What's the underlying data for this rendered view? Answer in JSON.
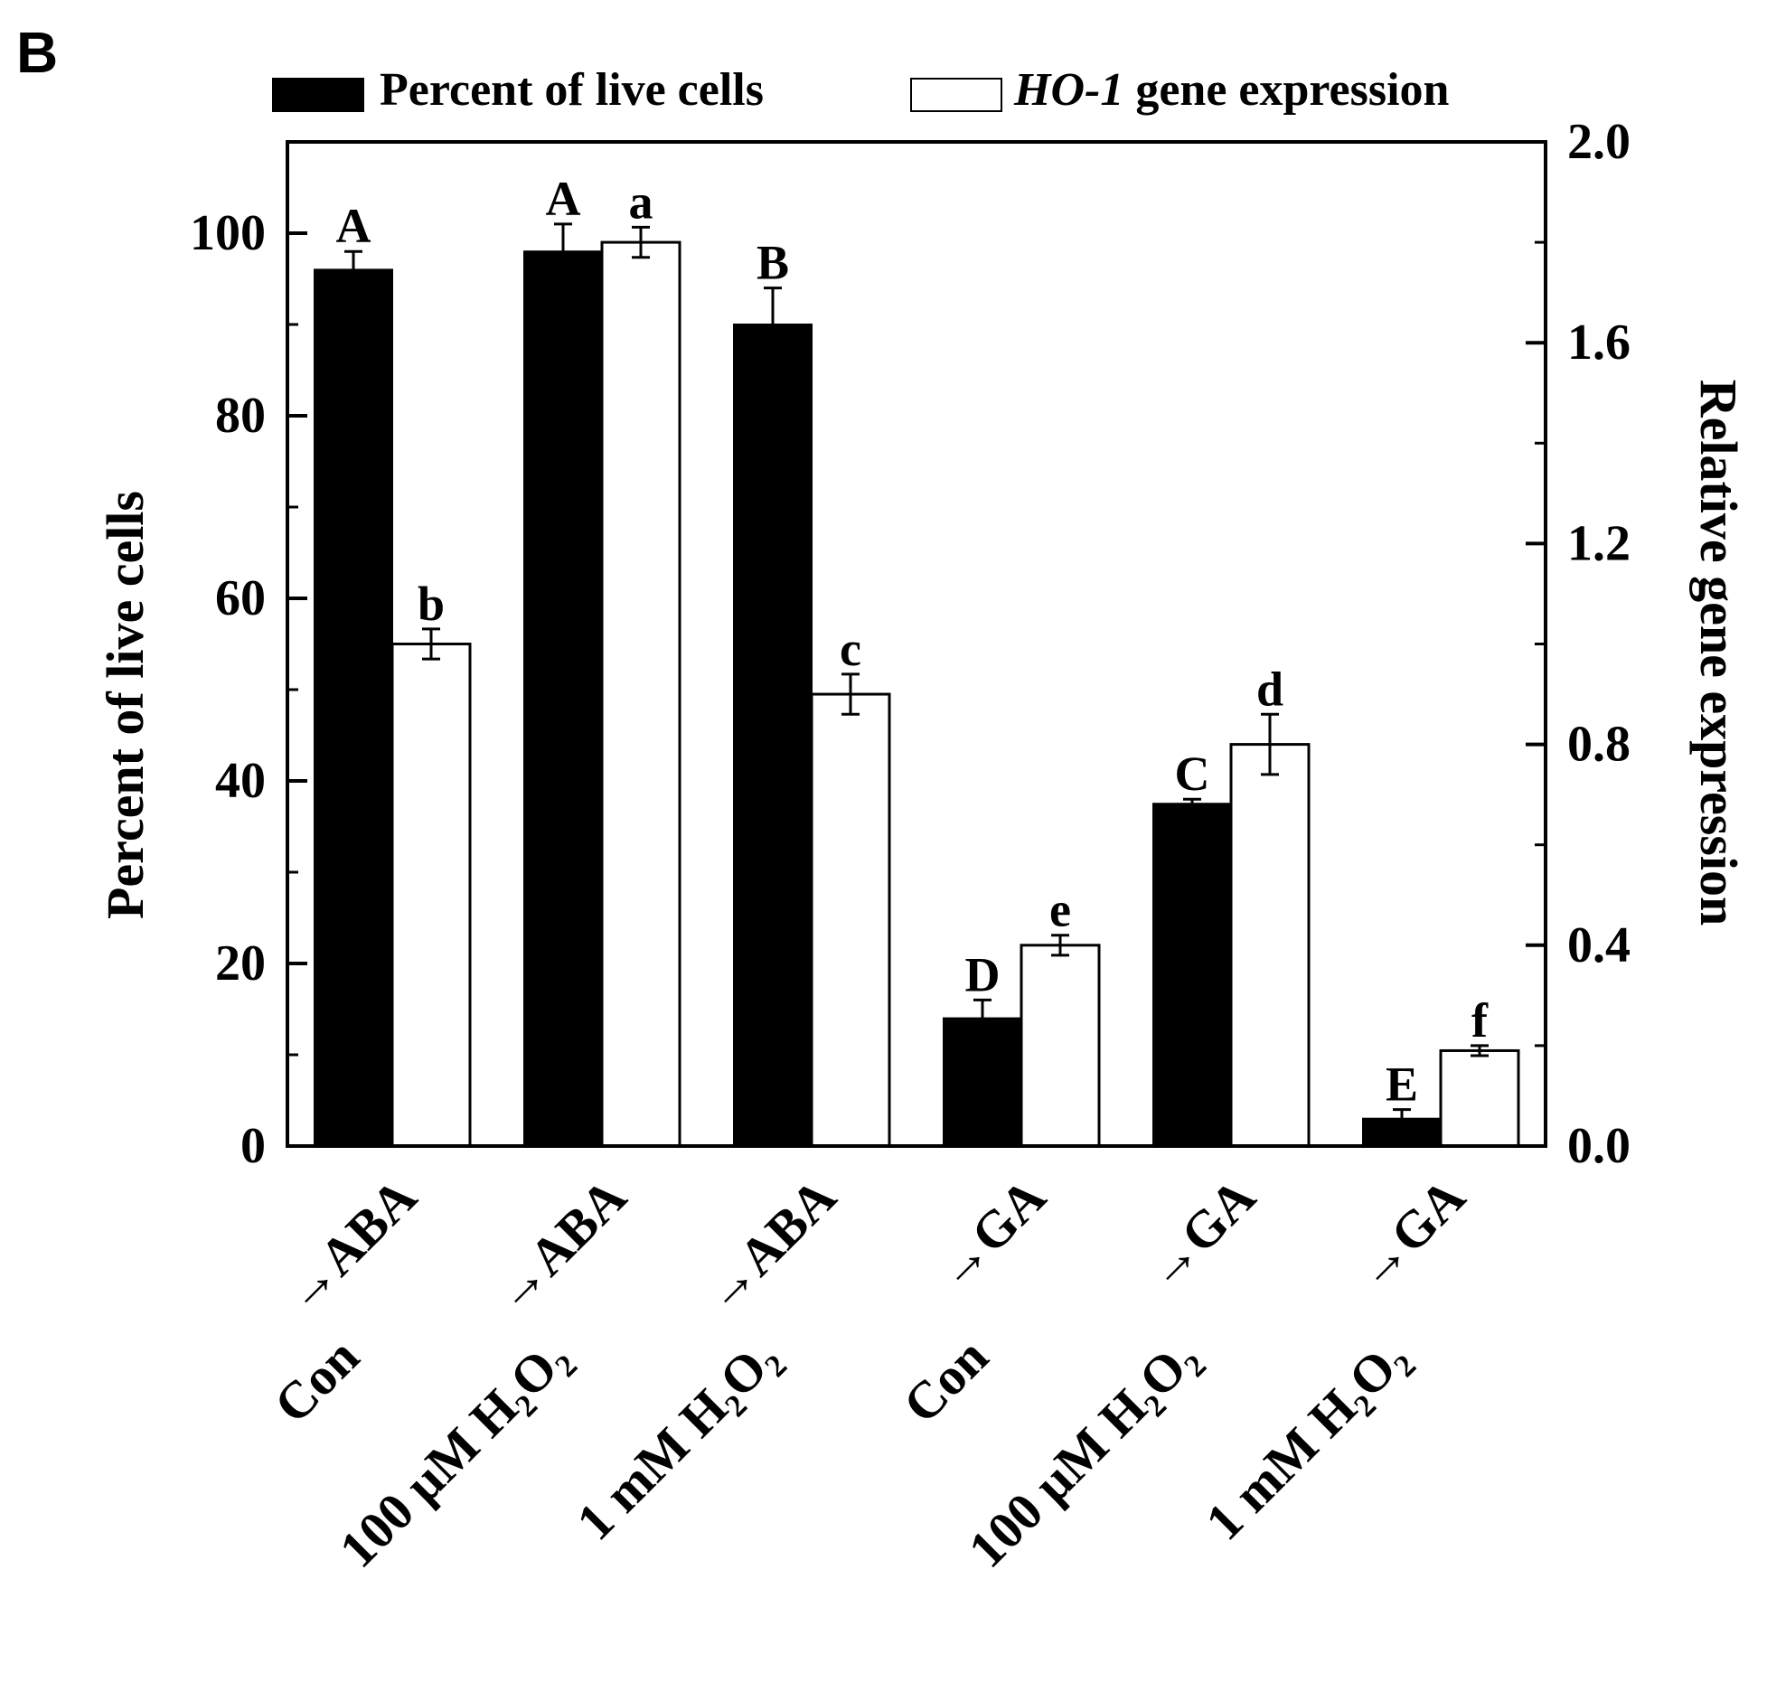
{
  "panel_label": "B",
  "chart_data": {
    "type": "bar",
    "categories": [
      {
        "treatment": "Con",
        "hormone": "ABA"
      },
      {
        "treatment": "100 µM H₂O₂",
        "hormone": "ABA"
      },
      {
        "treatment": "1 mM H₂O₂",
        "hormone": "ABA"
      },
      {
        "treatment": "Con",
        "hormone": "GA"
      },
      {
        "treatment": "100 µM H₂O₂",
        "hormone": "GA"
      },
      {
        "treatment": "1 mM H₂O₂",
        "hormone": "GA"
      }
    ],
    "series": [
      {
        "name": "Percent of live cells",
        "axis": "left",
        "color": "#000000",
        "values": [
          96,
          98,
          90,
          14,
          37.5,
          3
        ],
        "errors": [
          2,
          3,
          4,
          2,
          0.5,
          1
        ],
        "letters": [
          "A",
          "A",
          "B",
          "D",
          "C",
          "E"
        ]
      },
      {
        "name_italic": "HO-1",
        "name": " gene expression",
        "axis": "right",
        "color": "#ffffff",
        "values": [
          null,
          1.8,
          1.0,
          0.4,
          0.8,
          0.19
        ],
        "errors": [
          null,
          0.03,
          0.04,
          0.02,
          0.06,
          0.01
        ],
        "letters": [
          "",
          "a",
          "b",
          "c",
          "e",
          "d",
          "f"
        ],
        "letters_by_category": [
          "",
          "a",
          "b|c",
          "e",
          "d",
          "f"
        ]
      }
    ],
    "ylabel_left": "Percent of live cells",
    "ylabel_right": "Relative gene expression",
    "ylim_left": [
      0,
      110
    ],
    "ylim_right": [
      0,
      2.0
    ],
    "yticks_left": [
      "0",
      "20",
      "40",
      "60",
      "80",
      "100"
    ],
    "yticks_right": [
      "0.0",
      "0.4",
      "0.8",
      "1.2",
      "1.6",
      "2.0"
    ],
    "legend_position": "top",
    "grid": false
  }
}
